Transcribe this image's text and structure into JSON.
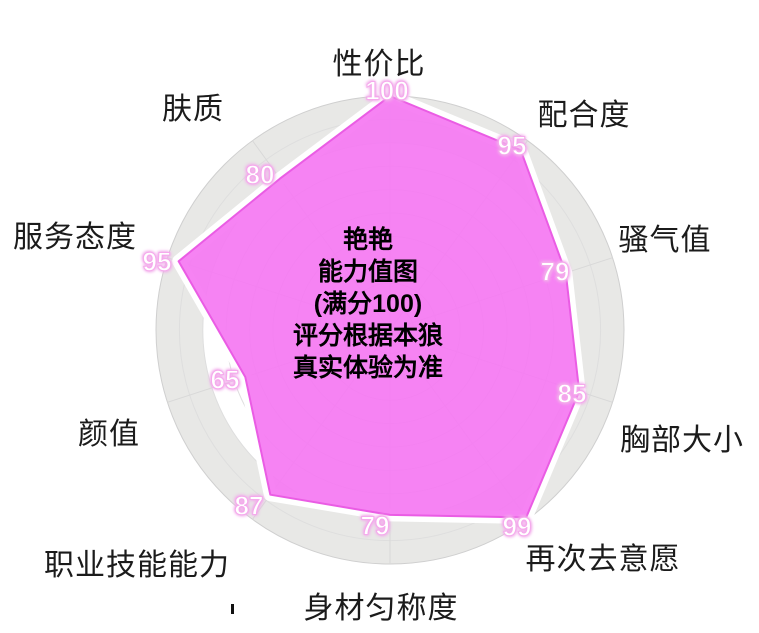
{
  "chart_data": {
    "type": "radar",
    "title_lines": [
      "艳艳",
      "能力值图",
      "(满分100)",
      "评分根据本狼",
      "真实体验为准"
    ],
    "categories": [
      "性价比",
      "配合度",
      "骚气值",
      "胸部大小",
      "再次去意愿",
      "身材匀称度",
      "职业技能能力",
      "颜值",
      "服务态度",
      "肤质"
    ],
    "values": [
      100,
      95,
      79,
      85,
      99,
      79,
      87,
      65,
      95,
      80
    ],
    "axis_max": 100,
    "axis_step": 10,
    "grid_on": true,
    "legend": "none",
    "colors": {
      "series_fill": "#F57AF2",
      "series_edge": "#EA5CE4",
      "series_halo": "#FFFFFF",
      "outer_band": "#E8E8E6",
      "inner_disc": "#FFFFFF",
      "gridline": "#DEDEDE",
      "spoke": "#D8D8D8",
      "value_label_fill": "#FFFFFF",
      "value_label_glow": "#F3A9EC",
      "category_text": "#1B1B1B",
      "center_text": "#000000"
    }
  }
}
